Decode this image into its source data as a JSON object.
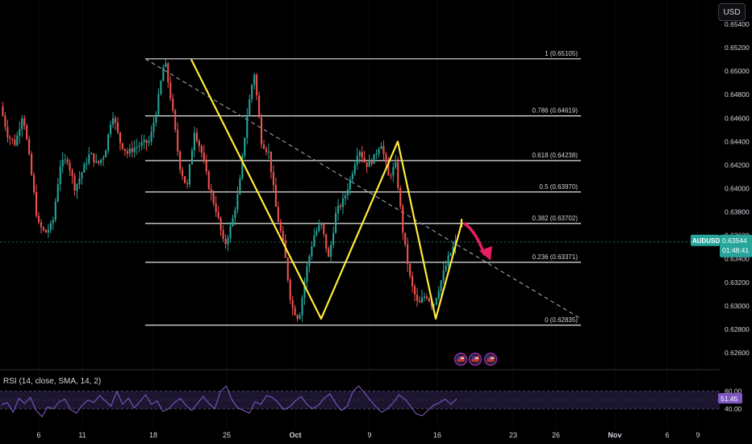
{
  "currency_button": "USD",
  "symbol_tag": "AUDUSD",
  "price_tag": "0.63544",
  "countdown": "01:48:41",
  "rsi": {
    "legend": "RSI (14, close, SMA, 14, 2)",
    "value_label": "51.45",
    "upper_label": "60.00",
    "lower_label": "40.00",
    "line_color": "#7e57c2",
    "band_color": "#1b1530"
  },
  "colors": {
    "up": "#26a69a",
    "down": "#ef5350",
    "pattern": "#ffeb3b",
    "arrow": "#e91e63",
    "fib": "#ffffff",
    "trend": "#9598a1"
  },
  "event_icons": [
    "flag-us-icon",
    "flag-us-icon",
    "flag-us-icon"
  ],
  "chart_data": {
    "type": "candlestick",
    "symbol": "AUDUSD",
    "ylim": [
      0.6255,
      0.655
    ],
    "y_ticks": [
      "0.65400",
      "0.65200",
      "0.65000",
      "0.64800",
      "0.64600",
      "0.64400",
      "0.64200",
      "0.64000",
      "0.63800",
      "0.63600",
      "0.63400",
      "0.63200",
      "0.63000",
      "0.62800",
      "0.62600"
    ],
    "x_ticks": [
      "6",
      "11",
      "18",
      "25",
      "Oct",
      "9",
      "16",
      "23",
      "26",
      "Nov",
      "6",
      "9"
    ],
    "close_path": [
      0.647,
      0.6445,
      0.6438,
      0.6465,
      0.642,
      0.637,
      0.6362,
      0.637,
      0.642,
      0.6425,
      0.64,
      0.6415,
      0.643,
      0.642,
      0.643,
      0.6465,
      0.644,
      0.643,
      0.6435,
      0.6438,
      0.644,
      0.647,
      0.651,
      0.647,
      0.642,
      0.64,
      0.645,
      0.643,
      0.64,
      0.638,
      0.635,
      0.637,
      0.64,
      0.646,
      0.65,
      0.644,
      0.643,
      0.638,
      0.635,
      0.63,
      0.6289,
      0.633,
      0.636,
      0.637,
      0.634,
      0.638,
      0.639,
      0.641,
      0.6435,
      0.642,
      0.6425,
      0.644,
      0.641,
      0.642,
      0.636,
      0.632,
      0.63,
      0.631,
      0.63,
      0.632,
      0.634,
      0.6354
    ],
    "fib_levels": [
      {
        "label": "1 (0.65105)",
        "value": 0.65105
      },
      {
        "label": "0.786 (0.64619)",
        "value": 0.64619
      },
      {
        "label": "0.618 (0.64238)",
        "value": 0.64238
      },
      {
        "label": "0.5 (0.63970)",
        "value": 0.6397
      },
      {
        "label": "0.382 (0.63702)",
        "value": 0.63702
      },
      {
        "label": "0.236 (0.63371)",
        "value": 0.63371
      },
      {
        "label": "0 (0.62835)",
        "value": 0.62835
      }
    ],
    "trendline": {
      "from": 0.65105,
      "to": 0.6289
    },
    "last_price": 0.63544,
    "pattern_points": [
      0.651,
      0.6289,
      0.644,
      0.6289,
      0.637
    ],
    "projection_target": 0.634,
    "rsi_ylim": [
      20,
      80
    ],
    "rsi_values": [
      45,
      47,
      36,
      52,
      46,
      53,
      38,
      31,
      42,
      40,
      48,
      51,
      39,
      35,
      44,
      50,
      47,
      55,
      49,
      43,
      60,
      45,
      52,
      41,
      48,
      56,
      45,
      49,
      37,
      40,
      47,
      52,
      44,
      38,
      46,
      54,
      46,
      40,
      60,
      66,
      50,
      41,
      38,
      35,
      48,
      45,
      55,
      53,
      47,
      39,
      42,
      49,
      54,
      45,
      40,
      44,
      52,
      57,
      46,
      38,
      43,
      60,
      66,
      58,
      50,
      42,
      36,
      40,
      47,
      56,
      51,
      43,
      34,
      32,
      38,
      44,
      47,
      51,
      45,
      51.45
    ]
  }
}
